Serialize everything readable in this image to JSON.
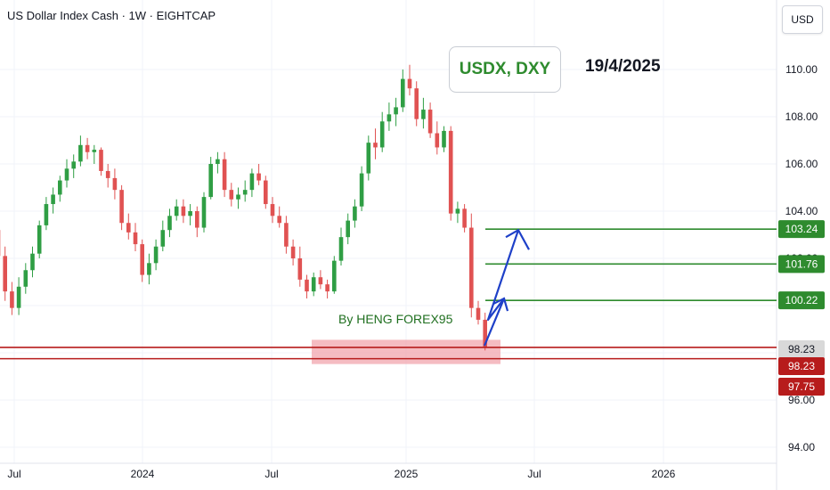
{
  "header": {
    "symbol_title": "US Dollar Index Cash · 1W · EIGHTCAP",
    "currency_button": "USD"
  },
  "annotations": {
    "pair": "USDX, DXY",
    "date": "19/4/2025",
    "author": "By HENG FOREX95"
  },
  "colors": {
    "bull": "#26a69a",
    "bear": "#ef5350",
    "bull_body": "#2f9e44",
    "bear_body": "#e05252",
    "target_line": "#2e8b2e",
    "support_line": "#b71c1c",
    "support_zone": "#f2a6ad",
    "arrow": "#1e40c8",
    "current_price_tag": "#d9d9d9"
  },
  "chart_data": {
    "type": "candlestick",
    "timeframe": "1W",
    "ylim": [
      93.5,
      111.0
    ],
    "y_ticks": [
      94.0,
      96.0,
      98.0,
      100.0,
      102.0,
      104.0,
      106.0,
      108.0,
      110.0
    ],
    "x_ticks": [
      "Jul",
      "2024",
      "Jul",
      "2025",
      "Jul",
      "2026"
    ],
    "candles_ohlc": [
      [
        103.2,
        103.8,
        101.8,
        102.1
      ],
      [
        102.1,
        102.5,
        100.2,
        100.6
      ],
      [
        100.6,
        101.0,
        99.6,
        99.9
      ],
      [
        99.9,
        101.2,
        99.6,
        100.8
      ],
      [
        100.8,
        101.8,
        100.5,
        101.5
      ],
      [
        101.5,
        102.5,
        101.2,
        102.2
      ],
      [
        102.2,
        103.6,
        102.0,
        103.4
      ],
      [
        103.4,
        104.6,
        103.2,
        104.3
      ],
      [
        104.3,
        105.0,
        103.9,
        104.7
      ],
      [
        104.7,
        105.5,
        104.4,
        105.3
      ],
      [
        105.3,
        106.2,
        105.0,
        105.8
      ],
      [
        105.8,
        106.4,
        105.4,
        106.1
      ],
      [
        106.1,
        107.2,
        105.9,
        106.8
      ],
      [
        106.8,
        107.1,
        106.2,
        106.5
      ],
      [
        106.5,
        106.8,
        106.0,
        106.6
      ],
      [
        106.6,
        106.7,
        105.5,
        105.7
      ],
      [
        105.7,
        106.0,
        105.0,
        105.4
      ],
      [
        105.4,
        105.8,
        104.5,
        104.9
      ],
      [
        104.9,
        105.1,
        103.2,
        103.5
      ],
      [
        103.5,
        103.9,
        102.8,
        103.1
      ],
      [
        103.1,
        103.5,
        102.3,
        102.6
      ],
      [
        102.6,
        102.8,
        101.0,
        101.3
      ],
      [
        101.3,
        102.2,
        100.9,
        101.8
      ],
      [
        101.8,
        102.8,
        101.5,
        102.5
      ],
      [
        102.5,
        103.6,
        102.3,
        103.2
      ],
      [
        103.2,
        104.1,
        102.9,
        103.8
      ],
      [
        103.8,
        104.5,
        103.6,
        104.2
      ],
      [
        104.2,
        104.5,
        103.5,
        103.8
      ],
      [
        103.8,
        104.3,
        103.4,
        104.0
      ],
      [
        104.0,
        104.2,
        102.9,
        103.3
      ],
      [
        103.3,
        104.8,
        103.1,
        104.6
      ],
      [
        104.6,
        106.3,
        104.5,
        106.0
      ],
      [
        106.0,
        106.5,
        105.6,
        106.2
      ],
      [
        106.2,
        106.5,
        104.6,
        104.9
      ],
      [
        104.9,
        105.2,
        104.2,
        104.5
      ],
      [
        104.5,
        105.0,
        104.1,
        104.7
      ],
      [
        104.7,
        105.3,
        104.4,
        104.9
      ],
      [
        104.9,
        105.8,
        104.6,
        105.6
      ],
      [
        105.6,
        106.0,
        105.1,
        105.3
      ],
      [
        105.3,
        105.5,
        104.1,
        104.3
      ],
      [
        104.3,
        104.6,
        103.5,
        103.8
      ],
      [
        103.8,
        104.2,
        103.3,
        103.5
      ],
      [
        103.5,
        103.8,
        102.2,
        102.5
      ],
      [
        102.5,
        102.8,
        101.7,
        102.0
      ],
      [
        102.0,
        102.5,
        100.8,
        101.1
      ],
      [
        101.1,
        101.3,
        100.3,
        100.6
      ],
      [
        100.6,
        101.4,
        100.4,
        101.2
      ],
      [
        101.2,
        101.5,
        100.7,
        100.9
      ],
      [
        100.9,
        101.1,
        100.3,
        100.6
      ],
      [
        100.6,
        102.1,
        100.5,
        101.9
      ],
      [
        101.9,
        103.3,
        101.7,
        102.9
      ],
      [
        102.9,
        103.9,
        102.6,
        103.6
      ],
      [
        103.6,
        104.5,
        103.3,
        104.2
      ],
      [
        104.2,
        105.9,
        104.0,
        105.6
      ],
      [
        105.6,
        107.2,
        105.3,
        106.9
      ],
      [
        106.9,
        107.5,
        106.2,
        106.7
      ],
      [
        106.7,
        108.2,
        106.5,
        107.8
      ],
      [
        107.8,
        108.6,
        107.4,
        108.1
      ],
      [
        108.1,
        108.8,
        107.6,
        108.4
      ],
      [
        108.4,
        110.0,
        108.2,
        109.6
      ],
      [
        109.6,
        110.2,
        108.9,
        109.2
      ],
      [
        109.2,
        109.5,
        107.6,
        107.9
      ],
      [
        107.9,
        108.8,
        107.5,
        108.3
      ],
      [
        108.3,
        108.6,
        107.1,
        107.3
      ],
      [
        107.3,
        107.8,
        106.4,
        106.7
      ],
      [
        106.7,
        107.6,
        106.5,
        107.4
      ],
      [
        107.4,
        107.6,
        103.6,
        103.9
      ],
      [
        103.9,
        104.4,
        103.5,
        104.1
      ],
      [
        104.1,
        104.3,
        103.1,
        103.3
      ],
      [
        103.3,
        103.9,
        99.5,
        99.9
      ],
      [
        99.9,
        100.2,
        99.2,
        99.4
      ],
      [
        99.4,
        99.7,
        98.1,
        98.23
      ]
    ],
    "current_price": 98.23,
    "price_tags": [
      103.24,
      101.76,
      100.22,
      98.23,
      97.75
    ],
    "target_levels": [
      103.24,
      101.76,
      100.22
    ],
    "support_levels": [
      98.23,
      97.75
    ],
    "support_zone": [
      97.75,
      98.4
    ]
  }
}
